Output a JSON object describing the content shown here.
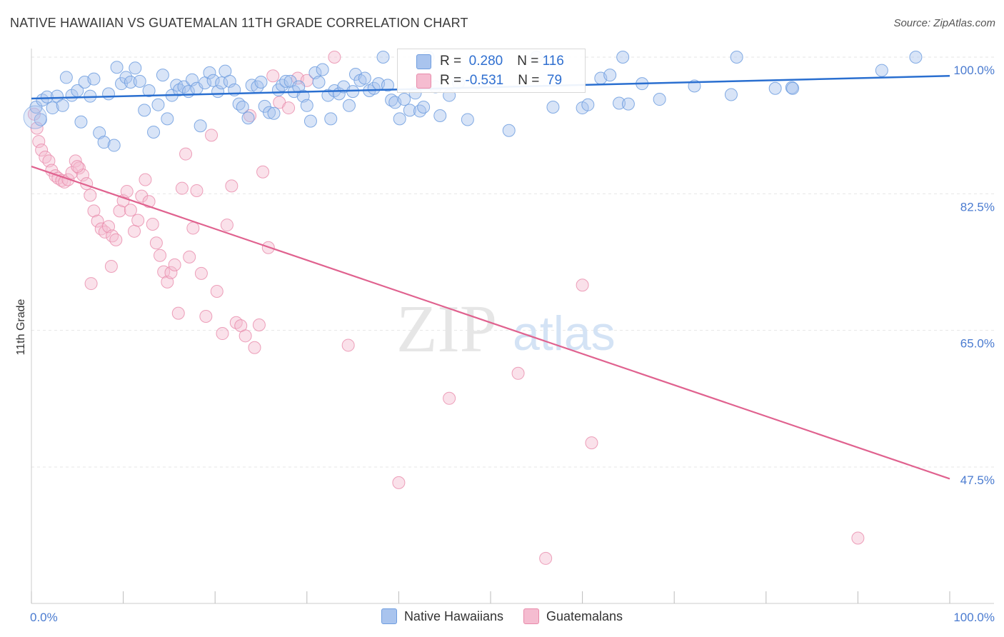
{
  "header": {
    "title": "NATIVE HAWAIIAN VS GUATEMALAN 11TH GRADE CORRELATION CHART",
    "source": "Source: ZipAtlas.com"
  },
  "watermark": {
    "zip": "ZIP",
    "atlas": "atlas"
  },
  "colors": {
    "blue_fill": "#a9c4ee",
    "blue_stroke": "#6f9ddf",
    "blue_line": "#2a6fd0",
    "pink_fill": "#f5bcd0",
    "pink_stroke": "#e88aaa",
    "pink_line": "#e0628f",
    "grid": "#e6e6e6",
    "tick_text": "#4a7bd0"
  },
  "stats": {
    "blue": {
      "r_label": "R = ",
      "r_value": " 0.280",
      "n_label": "N = ",
      "n_value": "116"
    },
    "pink": {
      "r_label": "R = ",
      "r_value": "-0.531",
      "n_label": "N = ",
      "n_value": " 79"
    }
  },
  "legend": {
    "blue": "Native Hawaiians",
    "pink": "Guatemalans"
  },
  "chart_data": {
    "type": "scatter",
    "title": "NATIVE HAWAIIAN VS GUATEMALAN 11TH GRADE CORRELATION CHART",
    "xlabel": "",
    "ylabel": "11th Grade",
    "xlim": [
      0,
      100
    ],
    "ylim": [
      33,
      101
    ],
    "y_ticks": [
      47.5,
      65.0,
      82.5,
      100.0
    ],
    "y_tick_labels": [
      "47.5%",
      "65.0%",
      "82.5%",
      "100.0%"
    ],
    "x_tick_labels": [
      "0.0%",
      "100.0%"
    ],
    "grid": true,
    "legend_position": "bottom",
    "series": [
      {
        "name": "Native Hawaiians",
        "color": "#6f9ddf",
        "trend": {
          "x": [
            0,
            100
          ],
          "y": [
            94.7,
            97.6
          ]
        },
        "points": [
          [
            0.5,
            93.6
          ],
          [
            1.0,
            92.0
          ],
          [
            1.2,
            94.5
          ],
          [
            1.7,
            94.9
          ],
          [
            2.3,
            93.5
          ],
          [
            2.8,
            95.0
          ],
          [
            3.4,
            93.8
          ],
          [
            3.8,
            97.4
          ],
          [
            4.4,
            95.1
          ],
          [
            5.0,
            95.7
          ],
          [
            5.4,
            91.7
          ],
          [
            5.8,
            96.8
          ],
          [
            6.4,
            95.0
          ],
          [
            6.8,
            97.2
          ],
          [
            7.4,
            90.3
          ],
          [
            7.9,
            89.1
          ],
          [
            8.4,
            95.3
          ],
          [
            9.0,
            88.7
          ],
          [
            9.3,
            98.7
          ],
          [
            9.8,
            96.6
          ],
          [
            10.3,
            97.4
          ],
          [
            10.8,
            96.8
          ],
          [
            11.3,
            98.6
          ],
          [
            11.8,
            96.9
          ],
          [
            12.3,
            93.2
          ],
          [
            12.8,
            95.7
          ],
          [
            13.3,
            90.4
          ],
          [
            13.8,
            93.9
          ],
          [
            14.3,
            97.7
          ],
          [
            14.8,
            92.1
          ],
          [
            15.3,
            95.1
          ],
          [
            15.8,
            96.4
          ],
          [
            16.1,
            95.8
          ],
          [
            16.6,
            96.2
          ],
          [
            17.1,
            95.6
          ],
          [
            17.5,
            97.1
          ],
          [
            18.0,
            96.0
          ],
          [
            18.4,
            91.2
          ],
          [
            18.9,
            96.7
          ],
          [
            19.4,
            98.0
          ],
          [
            19.8,
            97.0
          ],
          [
            20.3,
            95.6
          ],
          [
            20.7,
            96.7
          ],
          [
            21.1,
            98.2
          ],
          [
            21.6,
            96.9
          ],
          [
            22.1,
            95.8
          ],
          [
            22.6,
            94.0
          ],
          [
            23.0,
            93.6
          ],
          [
            23.6,
            92.2
          ],
          [
            24.0,
            96.4
          ],
          [
            24.6,
            96.2
          ],
          [
            25.0,
            96.8
          ],
          [
            25.4,
            93.7
          ],
          [
            25.9,
            92.9
          ],
          [
            26.4,
            92.8
          ],
          [
            26.9,
            95.8
          ],
          [
            27.3,
            96.4
          ],
          [
            27.7,
            96.9
          ],
          [
            28.2,
            96.9
          ],
          [
            28.6,
            95.6
          ],
          [
            29.1,
            96.2
          ],
          [
            29.6,
            95.0
          ],
          [
            30.0,
            93.8
          ],
          [
            30.4,
            91.8
          ],
          [
            30.9,
            98.0
          ],
          [
            31.3,
            96.8
          ],
          [
            31.7,
            98.4
          ],
          [
            32.3,
            95.1
          ],
          [
            32.6,
            92.1
          ],
          [
            33.0,
            95.7
          ],
          [
            33.5,
            95.3
          ],
          [
            34.0,
            96.2
          ],
          [
            34.6,
            93.8
          ],
          [
            35.0,
            95.6
          ],
          [
            35.3,
            97.8
          ],
          [
            35.8,
            97.0
          ],
          [
            36.3,
            97.3
          ],
          [
            36.8,
            95.7
          ],
          [
            37.3,
            96.0
          ],
          [
            37.8,
            96.6
          ],
          [
            38.3,
            100.0
          ],
          [
            38.8,
            96.4
          ],
          [
            39.2,
            94.5
          ],
          [
            39.6,
            94.2
          ],
          [
            40.1,
            92.1
          ],
          [
            40.6,
            94.6
          ],
          [
            41.2,
            93.2
          ],
          [
            41.8,
            95.4
          ],
          [
            42.3,
            93.1
          ],
          [
            42.7,
            93.6
          ],
          [
            43.2,
            100.0
          ],
          [
            44.0,
            96.2
          ],
          [
            44.5,
            92.5
          ],
          [
            45.5,
            95.1
          ],
          [
            46.5,
            96.7
          ],
          [
            47.5,
            92.0
          ],
          [
            48.5,
            96.7
          ],
          [
            50.5,
            96.9
          ],
          [
            52.0,
            90.6
          ],
          [
            55.0,
            100.0
          ],
          [
            56.8,
            93.6
          ],
          [
            60.0,
            93.5
          ],
          [
            60.6,
            93.9
          ],
          [
            62.0,
            97.3
          ],
          [
            63.0,
            97.7
          ],
          [
            64.0,
            94.1
          ],
          [
            64.4,
            100.0
          ],
          [
            65.0,
            94.0
          ],
          [
            66.5,
            96.6
          ],
          [
            68.4,
            94.6
          ],
          [
            72.2,
            96.3
          ],
          [
            76.2,
            95.2
          ],
          [
            76.8,
            100.0
          ],
          [
            81.0,
            96.0
          ],
          [
            82.8,
            96.1
          ],
          [
            82.9,
            96.0
          ],
          [
            92.6,
            98.3
          ],
          [
            96.3,
            100.0
          ]
        ]
      },
      {
        "name": "Guatemalans",
        "color": "#e88aaa",
        "trend": {
          "x": [
            0,
            100
          ],
          "y": [
            86.0,
            46.0
          ]
        },
        "points": [
          [
            0.3,
            92.7
          ],
          [
            0.6,
            90.9
          ],
          [
            0.8,
            89.2
          ],
          [
            1.1,
            88.1
          ],
          [
            1.5,
            87.2
          ],
          [
            1.9,
            86.7
          ],
          [
            2.2,
            85.5
          ],
          [
            2.6,
            84.8
          ],
          [
            2.9,
            84.5
          ],
          [
            3.3,
            84.2
          ],
          [
            3.6,
            84.0
          ],
          [
            4.0,
            84.3
          ],
          [
            4.4,
            85.2
          ],
          [
            4.8,
            86.7
          ],
          [
            5.2,
            85.8
          ],
          [
            5.6,
            84.9
          ],
          [
            6.0,
            83.8
          ],
          [
            6.4,
            82.3
          ],
          [
            6.8,
            80.3
          ],
          [
            7.2,
            79.0
          ],
          [
            7.6,
            78.0
          ],
          [
            8.0,
            77.6
          ],
          [
            8.4,
            78.3
          ],
          [
            8.8,
            77.1
          ],
          [
            9.2,
            76.6
          ],
          [
            9.6,
            80.3
          ],
          [
            10.0,
            81.6
          ],
          [
            10.4,
            82.8
          ],
          [
            10.8,
            80.4
          ],
          [
            11.2,
            77.7
          ],
          [
            11.6,
            79.1
          ],
          [
            12.0,
            82.2
          ],
          [
            12.4,
            84.3
          ],
          [
            12.8,
            81.5
          ],
          [
            13.2,
            78.6
          ],
          [
            13.6,
            76.2
          ],
          [
            14.0,
            74.6
          ],
          [
            14.4,
            72.5
          ],
          [
            14.8,
            71.2
          ],
          [
            15.2,
            72.4
          ],
          [
            15.6,
            73.4
          ],
          [
            16.0,
            67.2
          ],
          [
            16.4,
            83.2
          ],
          [
            16.8,
            87.6
          ],
          [
            17.2,
            74.4
          ],
          [
            17.6,
            78.1
          ],
          [
            18.0,
            82.9
          ],
          [
            18.5,
            72.3
          ],
          [
            19.0,
            66.8
          ],
          [
            19.6,
            90.0
          ],
          [
            20.2,
            70.0
          ],
          [
            20.8,
            64.6
          ],
          [
            21.3,
            78.5
          ],
          [
            21.8,
            83.5
          ],
          [
            22.3,
            66.0
          ],
          [
            22.8,
            65.6
          ],
          [
            23.3,
            64.3
          ],
          [
            23.8,
            92.5
          ],
          [
            24.3,
            62.8
          ],
          [
            24.8,
            65.7
          ],
          [
            25.2,
            85.3
          ],
          [
            25.8,
            75.6
          ],
          [
            26.3,
            97.6
          ],
          [
            27.0,
            94.2
          ],
          [
            28.0,
            93.5
          ],
          [
            29.0,
            97.3
          ],
          [
            30.0,
            97.0
          ],
          [
            33.0,
            100.0
          ],
          [
            34.5,
            63.1
          ],
          [
            40.0,
            45.5
          ],
          [
            45.5,
            56.3
          ],
          [
            53.0,
            59.5
          ],
          [
            56.0,
            35.8
          ],
          [
            60.0,
            70.8
          ],
          [
            61.0,
            50.6
          ],
          [
            90.0,
            38.4
          ],
          [
            6.5,
            71.0
          ],
          [
            8.7,
            73.2
          ],
          [
            5.0,
            86.0
          ]
        ]
      }
    ]
  }
}
